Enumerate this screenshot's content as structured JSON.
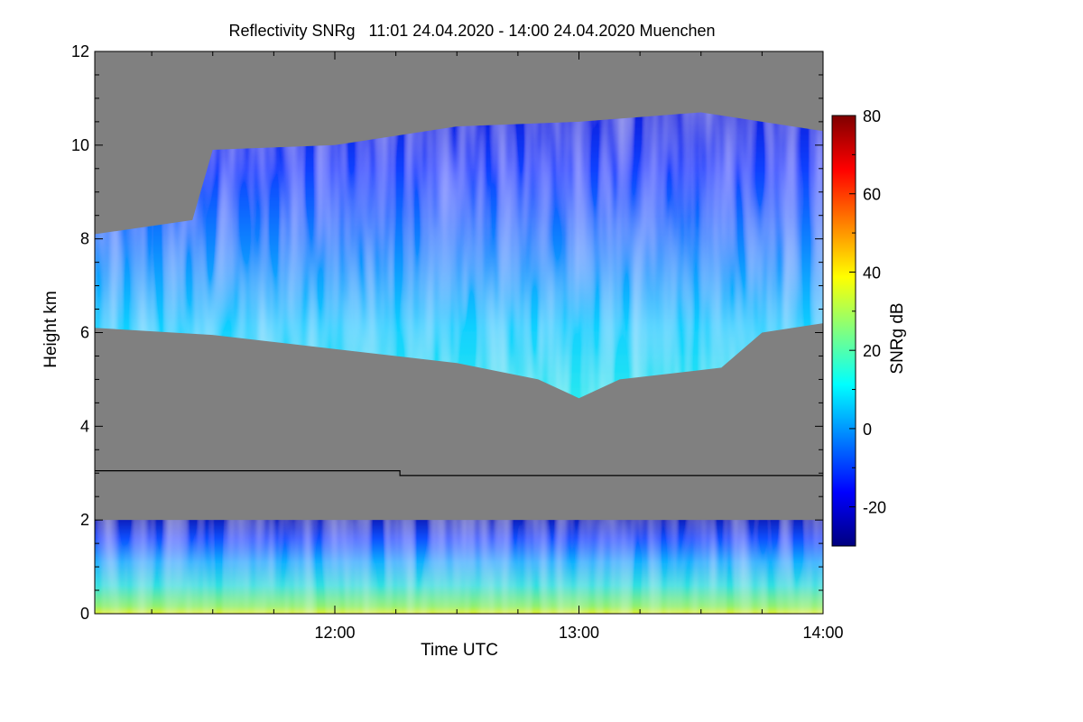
{
  "chart_data": {
    "type": "heatmap",
    "title": "Reflectivity SNRg   11:01 24.04.2020 - 14:00 24.04.2020 Muenchen",
    "xlabel": "Time UTC",
    "ylabel": "Height km",
    "xlim": [
      "11:01",
      "14:00"
    ],
    "x_ticks": [
      "12:00",
      "13:00",
      "14:00"
    ],
    "ylim": [
      0,
      12
    ],
    "y_ticks": [
      "0",
      "2",
      "4",
      "6",
      "8",
      "10",
      "12"
    ],
    "colorbar": {
      "label": "SNRg dB",
      "range": [
        -30,
        80
      ],
      "ticks": [
        "-20",
        "0",
        "20",
        "40",
        "60",
        "80"
      ],
      "colormap": [
        "#00007f",
        "#0000ff",
        "#0080ff",
        "#00ffff",
        "#80ff80",
        "#ffff00",
        "#ff8000",
        "#ff0000",
        "#7f0000"
      ]
    },
    "background_color": "#808080",
    "melting_layer_km": [
      {
        "from": "11:01",
        "to": "12:16",
        "height": 3.05
      },
      {
        "from": "12:16",
        "to": "14:00",
        "height": 2.95
      }
    ],
    "upper_cloud": {
      "base_km": [
        {
          "time": "11:01",
          "height": 6.1
        },
        {
          "time": "11:30",
          "height": 5.95
        },
        {
          "time": "12:00",
          "height": 5.65
        },
        {
          "time": "12:30",
          "height": 5.35
        },
        {
          "time": "12:50",
          "height": 5.0
        },
        {
          "time": "13:00",
          "height": 4.6
        },
        {
          "time": "13:10",
          "height": 5.0
        },
        {
          "time": "13:35",
          "height": 5.25
        },
        {
          "time": "13:45",
          "height": 6.0
        },
        {
          "time": "14:00",
          "height": 6.2
        }
      ],
      "top_km": [
        {
          "time": "11:01",
          "height": 8.1
        },
        {
          "time": "11:25",
          "height": 8.4
        },
        {
          "time": "11:30",
          "height": 9.9
        },
        {
          "time": "12:00",
          "height": 10.0
        },
        {
          "time": "12:30",
          "height": 10.4
        },
        {
          "time": "13:00",
          "height": 10.5
        },
        {
          "time": "13:30",
          "height": 10.7
        },
        {
          "time": "14:00",
          "height": 10.3
        }
      ]
    },
    "lower_echo_top_km": 2.0
  }
}
